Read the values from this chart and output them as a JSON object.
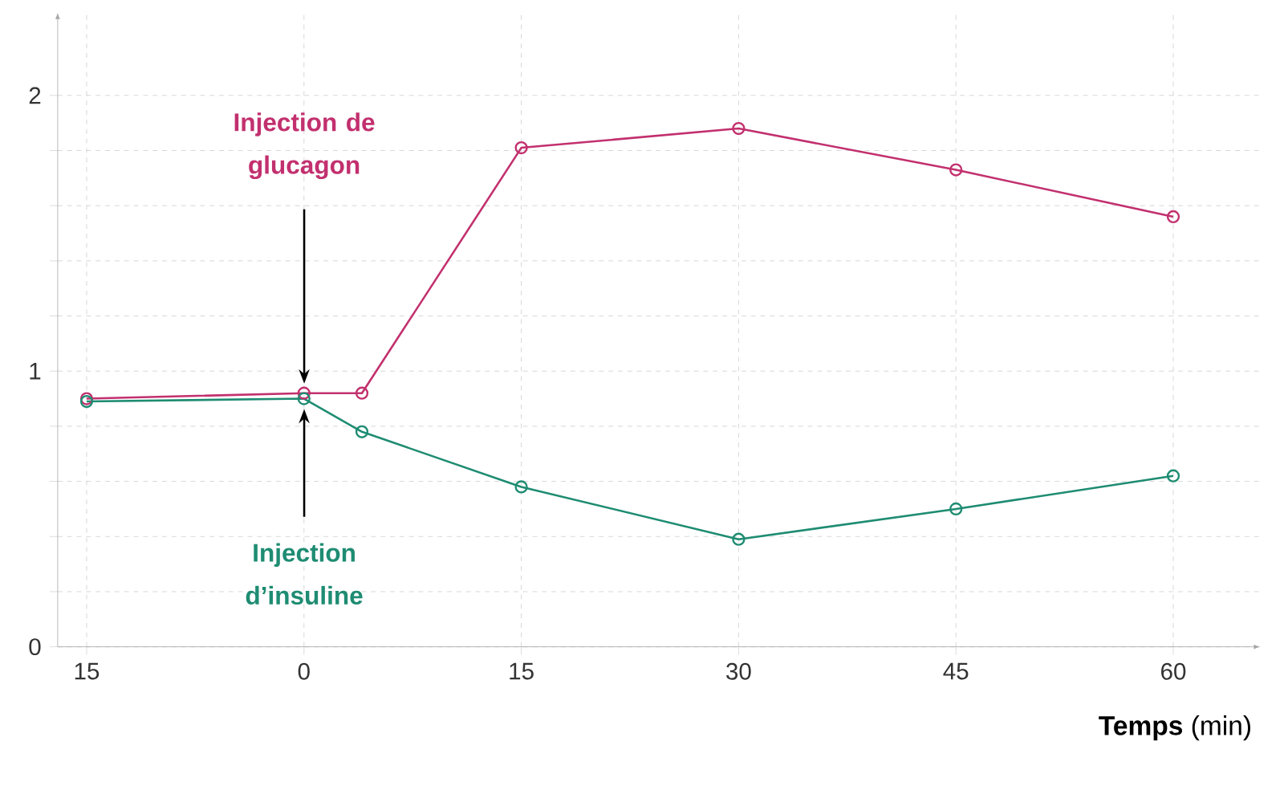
{
  "chart_data": {
    "type": "line",
    "xlabel": "**Temps** (min)",
    "x": [
      -15,
      0,
      4,
      15,
      30,
      45,
      60
    ],
    "series": [
      {
        "color": "#c2306e",
        "values": [
          0.9,
          0.92,
          0.92,
          1.81,
          1.88,
          1.73,
          1.56
        ]
      },
      {
        "color": "#1e8c72",
        "values": [
          0.89,
          0.9,
          0.78,
          0.58,
          0.39,
          0.5,
          0.62
        ]
      }
    ],
    "xlim": [
      -17,
      66
    ],
    "ylim": [
      0,
      2.3
    ],
    "xticks": [
      {
        "value": -15,
        "label": "15"
      },
      0,
      15,
      30,
      45,
      60
    ],
    "yticks": [
      0,
      {
        "value": 0.2,
        "label": null
      },
      {
        "value": 0.4,
        "label": null
      },
      {
        "value": 0.6,
        "label": null
      },
      {
        "value": 0.8,
        "label": null
      },
      1,
      {
        "value": 1.2,
        "label": null
      },
      {
        "value": 1.4,
        "label": null
      },
      {
        "value": 1.6,
        "label": null
      },
      {
        "value": 1.8,
        "label": null
      },
      2
    ],
    "grid": true,
    "marker": "circle",
    "line_style": "solid",
    "annotations": [
      "Injection de glucagon",
      "Injection d’insuline"
    ]
  }
}
